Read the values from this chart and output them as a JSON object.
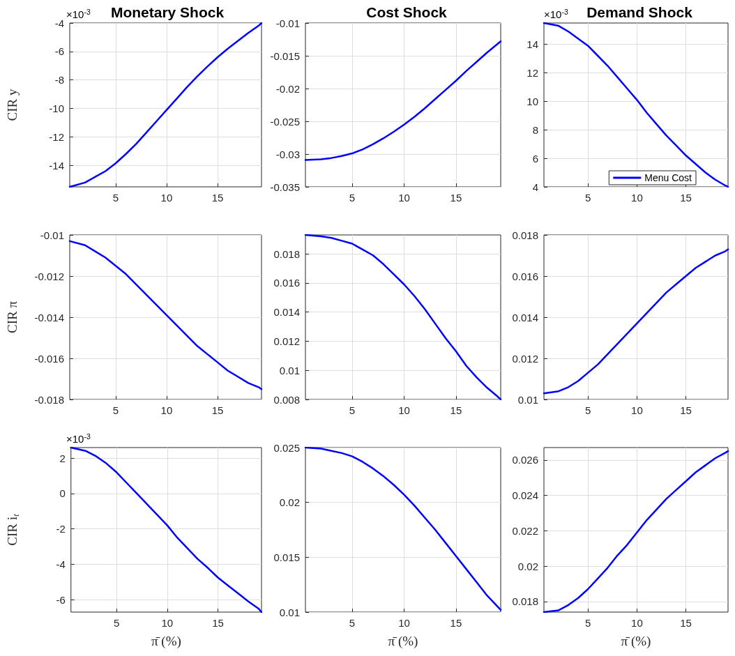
{
  "chart_data": [
    {
      "type": "line",
      "title": "Monetary Shock",
      "ylabel": "CIR y",
      "annotations": [
        "×10$^{-3}$"
      ],
      "x": [
        0.5,
        2,
        3,
        4,
        5,
        6,
        7,
        8,
        9,
        10,
        11,
        12,
        13,
        14,
        15,
        16,
        17,
        18,
        19,
        19.3
      ],
      "xlim": [
        0.5,
        19.3
      ],
      "xticks": [
        5,
        10,
        15
      ],
      "ylim": [
        -15.5,
        -4
      ],
      "yticks": [
        -14,
        -12,
        -10,
        -8,
        -6,
        -4
      ],
      "grid": true,
      "series": [
        {
          "color": "#0000ff",
          "values": [
            -15.5,
            -15.2,
            -14.8,
            -14.4,
            -13.85,
            -13.2,
            -12.5,
            -11.7,
            -10.9,
            -10.1,
            -9.3,
            -8.5,
            -7.75,
            -7.05,
            -6.4,
            -5.8,
            -5.25,
            -4.7,
            -4.2,
            -4.0
          ]
        }
      ]
    },
    {
      "type": "line",
      "title": "Cost Shock",
      "x": [
        0.5,
        2,
        3,
        4,
        5,
        6,
        7,
        8,
        9,
        10,
        11,
        12,
        13,
        14,
        15,
        16,
        17,
        18,
        19,
        19.3
      ],
      "xlim": [
        0.5,
        19.3
      ],
      "xticks": [
        5,
        10,
        15
      ],
      "ylim": [
        -0.035,
        -0.01
      ],
      "yticks": [
        -0.035,
        -0.03,
        -0.025,
        -0.02,
        -0.015,
        -0.01
      ],
      "grid": true,
      "series": [
        {
          "color": "#0000ff",
          "values": [
            -0.0309,
            -0.0308,
            -0.0306,
            -0.0303,
            -0.0299,
            -0.0293,
            -0.0285,
            -0.0276,
            -0.0266,
            -0.0255,
            -0.0243,
            -0.023,
            -0.0216,
            -0.0202,
            -0.0188,
            -0.0173,
            -0.0159,
            -0.0145,
            -0.0132,
            -0.0128
          ]
        }
      ]
    },
    {
      "type": "line",
      "title": "Demand Shock",
      "annotations": [
        "×10$^{-3}$"
      ],
      "legend": "bottom right",
      "x": [
        0.5,
        2,
        3,
        4,
        5,
        6,
        7,
        8,
        9,
        10,
        11,
        12,
        13,
        14,
        15,
        16,
        17,
        18,
        19,
        19.3
      ],
      "xlim": [
        0.5,
        19.3
      ],
      "xticks": [
        5,
        10,
        15
      ],
      "ylim": [
        4,
        15.5
      ],
      "yticks": [
        4,
        6,
        8,
        10,
        12,
        14
      ],
      "grid": true,
      "series": [
        {
          "name": "Menu Cost",
          "color": "#0000ff",
          "values": [
            15.5,
            15.3,
            14.9,
            14.4,
            13.9,
            13.2,
            12.5,
            11.7,
            10.9,
            10.1,
            9.2,
            8.4,
            7.6,
            6.9,
            6.2,
            5.6,
            5.0,
            4.5,
            4.1,
            4.0
          ]
        }
      ]
    },
    {
      "type": "line",
      "ylabel": "CIR π",
      "x": [
        0.5,
        2,
        3,
        4,
        5,
        6,
        7,
        8,
        9,
        10,
        11,
        12,
        13,
        14,
        15,
        16,
        17,
        18,
        19,
        19.3
      ],
      "xlim": [
        0.5,
        19.3
      ],
      "xticks": [
        5,
        10,
        15
      ],
      "ylim": [
        -0.018,
        -0.01
      ],
      "yticks": [
        -0.018,
        -0.016,
        -0.014,
        -0.012,
        -0.01
      ],
      "grid": true,
      "series": [
        {
          "color": "#0000ff",
          "values": [
            -0.0103,
            -0.0105,
            -0.0108,
            -0.0111,
            -0.0115,
            -0.0119,
            -0.0124,
            -0.0129,
            -0.0134,
            -0.0139,
            -0.0144,
            -0.0149,
            -0.0154,
            -0.0158,
            -0.0162,
            -0.0166,
            -0.0169,
            -0.0172,
            -0.0174,
            -0.0175
          ]
        }
      ]
    },
    {
      "type": "line",
      "x": [
        0.5,
        2,
        3,
        4,
        5,
        6,
        7,
        8,
        9,
        10,
        11,
        12,
        13,
        14,
        15,
        16,
        17,
        18,
        19,
        19.3
      ],
      "xlim": [
        0.5,
        19.3
      ],
      "xticks": [
        5,
        10,
        15
      ],
      "ylim": [
        0.008,
        0.0193
      ],
      "yticks": [
        0.008,
        0.01,
        0.012,
        0.014,
        0.016,
        0.018
      ],
      "grid": true,
      "series": [
        {
          "color": "#0000ff",
          "values": [
            0.0193,
            0.0192,
            0.0191,
            0.0189,
            0.0187,
            0.0183,
            0.0179,
            0.0173,
            0.0166,
            0.0159,
            0.0151,
            0.0142,
            0.0132,
            0.0122,
            0.0113,
            0.0103,
            0.0095,
            0.0088,
            0.0082,
            0.008
          ]
        }
      ]
    },
    {
      "type": "line",
      "x": [
        0.5,
        2,
        3,
        4,
        5,
        6,
        7,
        8,
        9,
        10,
        11,
        12,
        13,
        14,
        15,
        16,
        17,
        18,
        19,
        19.3
      ],
      "xlim": [
        0.5,
        19.3
      ],
      "xticks": [
        5,
        10,
        15
      ],
      "ylim": [
        0.01,
        0.018
      ],
      "yticks": [
        0.01,
        0.012,
        0.014,
        0.016,
        0.018
      ],
      "grid": true,
      "series": [
        {
          "color": "#0000ff",
          "values": [
            0.0103,
            0.0104,
            0.0106,
            0.0109,
            0.0113,
            0.0117,
            0.0122,
            0.0127,
            0.0132,
            0.0137,
            0.0142,
            0.0147,
            0.0152,
            0.0156,
            0.016,
            0.0164,
            0.0167,
            0.017,
            0.0172,
            0.0173
          ]
        }
      ]
    },
    {
      "type": "line",
      "ylabel": "CIR i$_{t}$",
      "xlabel": "π̄ (%)",
      "annotations": [
        "×10$^{-3}$"
      ],
      "x": [
        0.5,
        2,
        3,
        4,
        5,
        6,
        7,
        8,
        9,
        10,
        11,
        12,
        13,
        14,
        15,
        16,
        17,
        18,
        19,
        19.3
      ],
      "xlim": [
        0.5,
        19.3
      ],
      "xticks": [
        5,
        10,
        15
      ],
      "ylim": [
        -6.7,
        2.6
      ],
      "yticks": [
        -6,
        -4,
        -2,
        0,
        2
      ],
      "grid": true,
      "series": [
        {
          "color": "#0000ff",
          "values": [
            2.6,
            2.4,
            2.1,
            1.7,
            1.2,
            0.6,
            0.0,
            -0.6,
            -1.2,
            -1.8,
            -2.5,
            -3.1,
            -3.7,
            -4.2,
            -4.75,
            -5.2,
            -5.65,
            -6.1,
            -6.5,
            -6.7
          ]
        }
      ]
    },
    {
      "type": "line",
      "xlabel": "π̄ (%)",
      "x": [
        0.5,
        2,
        3,
        4,
        5,
        6,
        7,
        8,
        9,
        10,
        11,
        12,
        13,
        14,
        15,
        16,
        17,
        18,
        19,
        19.3
      ],
      "xlim": [
        0.5,
        19.3
      ],
      "xticks": [
        5,
        10,
        15
      ],
      "ylim": [
        0.01,
        0.025
      ],
      "yticks": [
        0.01,
        0.015,
        0.02,
        0.025
      ],
      "grid": true,
      "series": [
        {
          "color": "#0000ff",
          "values": [
            0.025,
            0.0249,
            0.0247,
            0.0245,
            0.0242,
            0.0237,
            0.0231,
            0.0224,
            0.0216,
            0.0207,
            0.0197,
            0.0186,
            0.0175,
            0.0163,
            0.0151,
            0.0139,
            0.0127,
            0.0115,
            0.0105,
            0.0102
          ]
        }
      ]
    },
    {
      "type": "line",
      "xlabel": "π̄ (%)",
      "x": [
        0.5,
        2,
        3,
        4,
        5,
        6,
        7,
        8,
        9,
        10,
        11,
        12,
        13,
        14,
        15,
        16,
        17,
        18,
        19,
        19.3
      ],
      "xlim": [
        0.5,
        19.3
      ],
      "xticks": [
        5,
        10,
        15
      ],
      "ylim": [
        0.0174,
        0.0267
      ],
      "yticks": [
        0.018,
        0.02,
        0.022,
        0.024,
        0.026
      ],
      "grid": true,
      "series": [
        {
          "color": "#0000ff",
          "values": [
            0.0174,
            0.0175,
            0.0178,
            0.0182,
            0.0187,
            0.0193,
            0.0199,
            0.0206,
            0.0212,
            0.0219,
            0.0226,
            0.0232,
            0.0238,
            0.0243,
            0.0248,
            0.0253,
            0.0257,
            0.0261,
            0.0264,
            0.0265
          ]
        }
      ]
    }
  ]
}
